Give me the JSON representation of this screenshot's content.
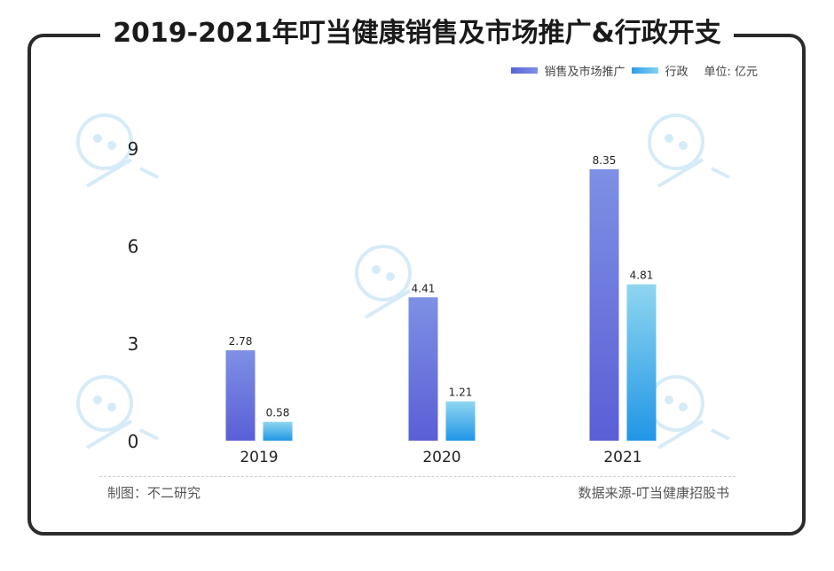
{
  "title": "2019-2021年叮当健康销售及市场推广&行政开支",
  "legend": {
    "items": [
      {
        "label": "销售及市场推广",
        "color": "#6b79e0"
      },
      {
        "label": "行政",
        "color": "#4fb5ea"
      }
    ],
    "unit": "单位: 亿元"
  },
  "footer": {
    "maker": "制图：不二研究",
    "source": "数据来源-叮当健康招股书"
  },
  "chart_data": {
    "type": "bar",
    "categories": [
      "2019",
      "2020",
      "2021"
    ],
    "series": [
      {
        "name": "销售及市场推广",
        "values": [
          2.78,
          4.41,
          8.35
        ],
        "color": "#6b79e0"
      },
      {
        "name": "行政",
        "values": [
          0.58,
          1.21,
          4.81
        ],
        "color": "#4fb5ea"
      }
    ],
    "y_ticks": [
      0,
      3,
      6,
      9
    ],
    "ylim": [
      0,
      9
    ],
    "data_labels": true,
    "grid": false,
    "legend_position": "top-right"
  }
}
